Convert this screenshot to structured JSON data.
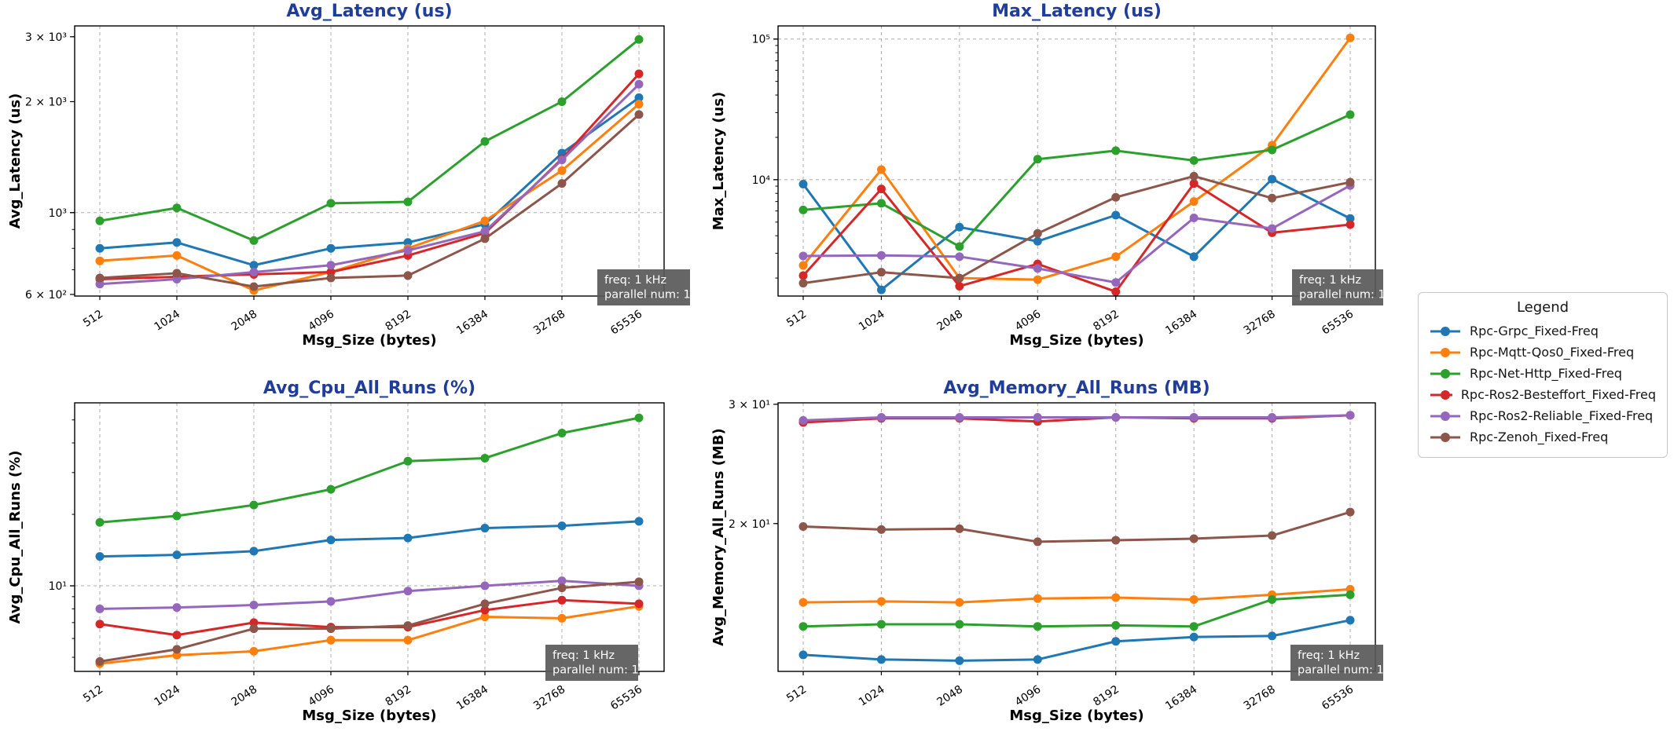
{
  "legend": {
    "title": "Legend"
  },
  "annotation": {
    "lines": [
      "freq: 1 kHz",
      "parallel num: 1"
    ]
  },
  "style": {
    "title_color": "#1f3d99",
    "annotation_bg": "#595959",
    "annotation_fg": "#ffffff",
    "grid_color": "#ababab",
    "spine_color": "#000000"
  },
  "series": [
    {
      "name": "Rpc-Grpc_Fixed-Freq",
      "color": "#1f77b4"
    },
    {
      "name": "Rpc-Mqtt-Qos0_Fixed-Freq",
      "color": "#ff7f0e"
    },
    {
      "name": "Rpc-Net-Http_Fixed-Freq",
      "color": "#2ca02c"
    },
    {
      "name": "Rpc-Ros2-Besteffort_Fixed-Freq",
      "color": "#d62728"
    },
    {
      "name": "Rpc-Ros2-Reliable_Fixed-Freq",
      "color": "#9467bd"
    },
    {
      "name": "Rpc-Zenoh_Fixed-Freq",
      "color": "#8c564b"
    }
  ],
  "chart_data": [
    {
      "id": "avg-latency",
      "type": "line",
      "title": "Avg_Latency (us)",
      "xlabel": "Msg_Size (bytes)",
      "ylabel": "Avg_Latency (us)",
      "yscale": "log",
      "categories": [
        "512",
        "1024",
        "2048",
        "4096",
        "8192",
        "16384",
        "32768",
        "65536"
      ],
      "ylim": [
        594,
        3210
      ],
      "yticks": [
        {
          "value": 3000,
          "label": "3 × 10³"
        },
        {
          "value": 2000,
          "label": "2 × 10³"
        },
        {
          "value": 1000,
          "label": "10³"
        },
        {
          "value": 600,
          "label": "6 × 10²"
        }
      ],
      "ygrid_values": [
        1000
      ],
      "series": [
        {
          "name": "Rpc-Grpc_Fixed-Freq",
          "values": [
            800,
            830,
            720,
            800,
            830,
            930,
            1450,
            2050
          ]
        },
        {
          "name": "Rpc-Mqtt-Qos0_Fixed-Freq",
          "values": [
            740,
            765,
            615,
            690,
            800,
            950,
            1300,
            1970
          ]
        },
        {
          "name": "Rpc-Net-Http_Fixed-Freq",
          "values": [
            950,
            1030,
            840,
            1060,
            1070,
            1560,
            2000,
            2950
          ]
        },
        {
          "name": "Rpc-Ros2-Besteffort_Fixed-Freq",
          "values": [
            660,
            670,
            680,
            690,
            765,
            880,
            1400,
            2380
          ]
        },
        {
          "name": "Rpc-Ros2-Reliable_Fixed-Freq",
          "values": [
            640,
            660,
            690,
            720,
            790,
            890,
            1390,
            2230
          ]
        },
        {
          "name": "Rpc-Zenoh_Fixed-Freq",
          "values": [
            665,
            685,
            630,
            665,
            675,
            850,
            1200,
            1845
          ]
        }
      ]
    },
    {
      "id": "max-latency",
      "type": "line",
      "title": "Max_Latency (us)",
      "xlabel": "Msg_Size (bytes)",
      "ylabel": "Max_Latency (us)",
      "yscale": "log",
      "categories": [
        "512",
        "1024",
        "2048",
        "4096",
        "8192",
        "16384",
        "32768",
        "65536"
      ],
      "ylim": [
        1490,
        124000
      ],
      "yticks": [
        {
          "value": 100000,
          "label": "10⁵"
        },
        {
          "value": 10000,
          "label": "10⁴"
        }
      ],
      "ygrid_values": [
        100000,
        10000
      ],
      "series": [
        {
          "name": "Rpc-Grpc_Fixed-Freq",
          "values": [
            9300,
            1650,
            4600,
            3650,
            5600,
            2840,
            10100,
            5300
          ]
        },
        {
          "name": "Rpc-Mqtt-Qos0_Fixed-Freq",
          "values": [
            2460,
            11800,
            2000,
            1950,
            2840,
            7000,
            17600,
            102000
          ]
        },
        {
          "name": "Rpc-Net-Http_Fixed-Freq",
          "values": [
            6100,
            6800,
            3350,
            14000,
            16100,
            13700,
            16300,
            29000
          ]
        },
        {
          "name": "Rpc-Ros2-Besteffort_Fixed-Freq",
          "values": [
            2080,
            8600,
            1750,
            2520,
            1600,
            9400,
            4200,
            4800
          ]
        },
        {
          "name": "Rpc-Ros2-Reliable_Fixed-Freq",
          "values": [
            2870,
            2900,
            2840,
            2340,
            1860,
            5350,
            4500,
            9100
          ]
        },
        {
          "name": "Rpc-Zenoh_Fixed-Freq",
          "values": [
            1840,
            2200,
            2000,
            4150,
            7500,
            10600,
            7400,
            9600
          ]
        }
      ]
    },
    {
      "id": "avg-cpu",
      "type": "line",
      "title": "Avg_Cpu_All_Runs (%)",
      "xlabel": "Msg_Size (bytes)",
      "ylabel": "Avg_Cpu_All_Runs (%)",
      "yscale": "log",
      "categories": [
        "512",
        "1024",
        "2048",
        "4096",
        "8192",
        "16384",
        "32768",
        "65536"
      ],
      "ylim": [
        4.36,
        59
      ],
      "yticks": [
        {
          "value": 10,
          "label": "10¹"
        }
      ],
      "ygrid_values": [
        10
      ],
      "series": [
        {
          "name": "Rpc-Grpc_Fixed-Freq",
          "values": [
            13.3,
            13.5,
            14.0,
            15.6,
            15.9,
            17.5,
            17.9,
            18.7
          ]
        },
        {
          "name": "Rpc-Mqtt-Qos0_Fixed-Freq",
          "values": [
            4.7,
            5.1,
            5.3,
            5.9,
            5.9,
            7.4,
            7.3,
            8.2
          ]
        },
        {
          "name": "Rpc-Net-Http_Fixed-Freq",
          "values": [
            18.5,
            19.7,
            21.9,
            25.5,
            33.5,
            34.5,
            44,
            51
          ]
        },
        {
          "name": "Rpc-Ros2-Besteffort_Fixed-Freq",
          "values": [
            6.9,
            6.2,
            7.0,
            6.7,
            6.7,
            7.9,
            8.7,
            8.4
          ]
        },
        {
          "name": "Rpc-Ros2-Reliable_Fixed-Freq",
          "values": [
            8.0,
            8.1,
            8.3,
            8.6,
            9.5,
            10.0,
            10.5,
            10.0
          ]
        },
        {
          "name": "Rpc-Zenoh_Fixed-Freq",
          "values": [
            4.8,
            5.4,
            6.6,
            6.6,
            6.8,
            8.4,
            9.8,
            10.4
          ]
        }
      ]
    },
    {
      "id": "avg-memory",
      "type": "line",
      "title": "Avg_Memory_All_Runs (MB)",
      "xlabel": "Msg_Size (bytes)",
      "ylabel": "Avg_Memory_All_Runs (MB)",
      "yscale": "log",
      "categories": [
        "512",
        "1024",
        "2048",
        "4096",
        "8192",
        "16384",
        "32768",
        "65536"
      ],
      "ylim": [
        12.1,
        30.15
      ],
      "yticks": [
        {
          "value": 30,
          "label": "3 × 10¹"
        },
        {
          "value": 20,
          "label": "2 × 10¹"
        }
      ],
      "ygrid_values": [],
      "series": [
        {
          "name": "Rpc-Grpc_Fixed-Freq",
          "values": [
            12.8,
            12.6,
            12.55,
            12.6,
            13.4,
            13.6,
            13.65,
            14.4
          ]
        },
        {
          "name": "Rpc-Mqtt-Qos0_Fixed-Freq",
          "values": [
            15.3,
            15.35,
            15.3,
            15.5,
            15.55,
            15.45,
            15.7,
            16.0
          ]
        },
        {
          "name": "Rpc-Net-Http_Fixed-Freq",
          "values": [
            14.1,
            14.2,
            14.2,
            14.1,
            14.15,
            14.1,
            15.45,
            15.7
          ]
        },
        {
          "name": "Rpc-Ros2-Besteffort_Fixed-Freq",
          "values": [
            28.2,
            28.6,
            28.6,
            28.3,
            28.7,
            28.6,
            28.6,
            28.9
          ]
        },
        {
          "name": "Rpc-Ros2-Reliable_Fixed-Freq",
          "values": [
            28.4,
            28.7,
            28.7,
            28.7,
            28.7,
            28.7,
            28.7,
            28.9
          ]
        },
        {
          "name": "Rpc-Zenoh_Fixed-Freq",
          "values": [
            19.8,
            19.6,
            19.65,
            18.8,
            18.9,
            19.0,
            19.2,
            20.8
          ]
        }
      ]
    }
  ]
}
